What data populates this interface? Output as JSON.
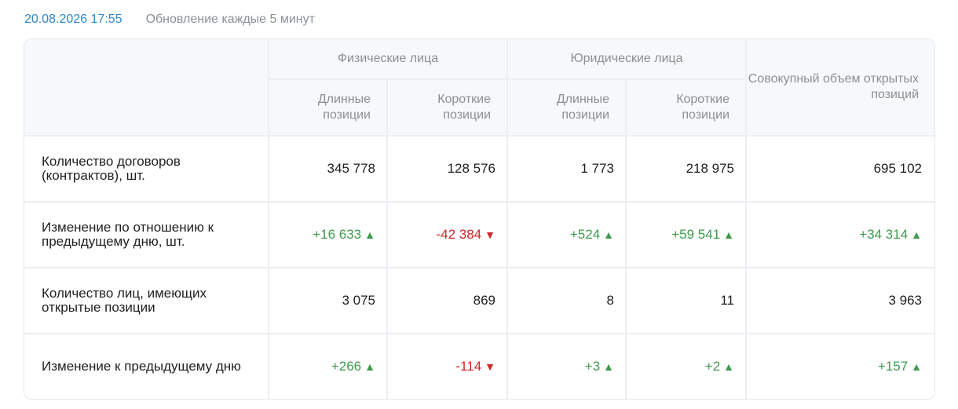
{
  "header": {
    "datetime": "20.08.2026 17:55",
    "refresh_note": "Обновление каждые 5 минут"
  },
  "table": {
    "groups": {
      "individuals": "Физические лица",
      "legal": "Юридические лица",
      "total": "Совокупный объем открытых позиций"
    },
    "sub": {
      "long": "Длинные позиции",
      "short": "Короткие позиции"
    },
    "rows": [
      {
        "label": "Количество договоров (контрактов), шт.",
        "values": [
          "345 778",
          "128 576",
          "1 773",
          "218 975",
          "695 102"
        ]
      },
      {
        "label": "Изменение по отношению к предыдущему дню, шт.",
        "values": [
          "+16 633",
          "-42 384",
          "+524",
          "+59 541",
          "+34 314"
        ],
        "directions": [
          "up",
          "down",
          "up",
          "up",
          "up"
        ]
      },
      {
        "label": "Количество лиц, имеющих открытые позиции",
        "values": [
          "3 075",
          "869",
          "8",
          "11",
          "3 963"
        ]
      },
      {
        "label": "Изменение к предыдущему дню",
        "values": [
          "+266",
          "-114",
          "+3",
          "+2",
          "+157"
        ],
        "directions": [
          "up",
          "down",
          "up",
          "up",
          "up"
        ]
      }
    ]
  },
  "colors": {
    "up": "#3f9a4d",
    "down": "#d0262a",
    "accent": "#2f87c7"
  },
  "icons": {
    "up": "triangle-up-icon",
    "down": "triangle-down-icon"
  }
}
